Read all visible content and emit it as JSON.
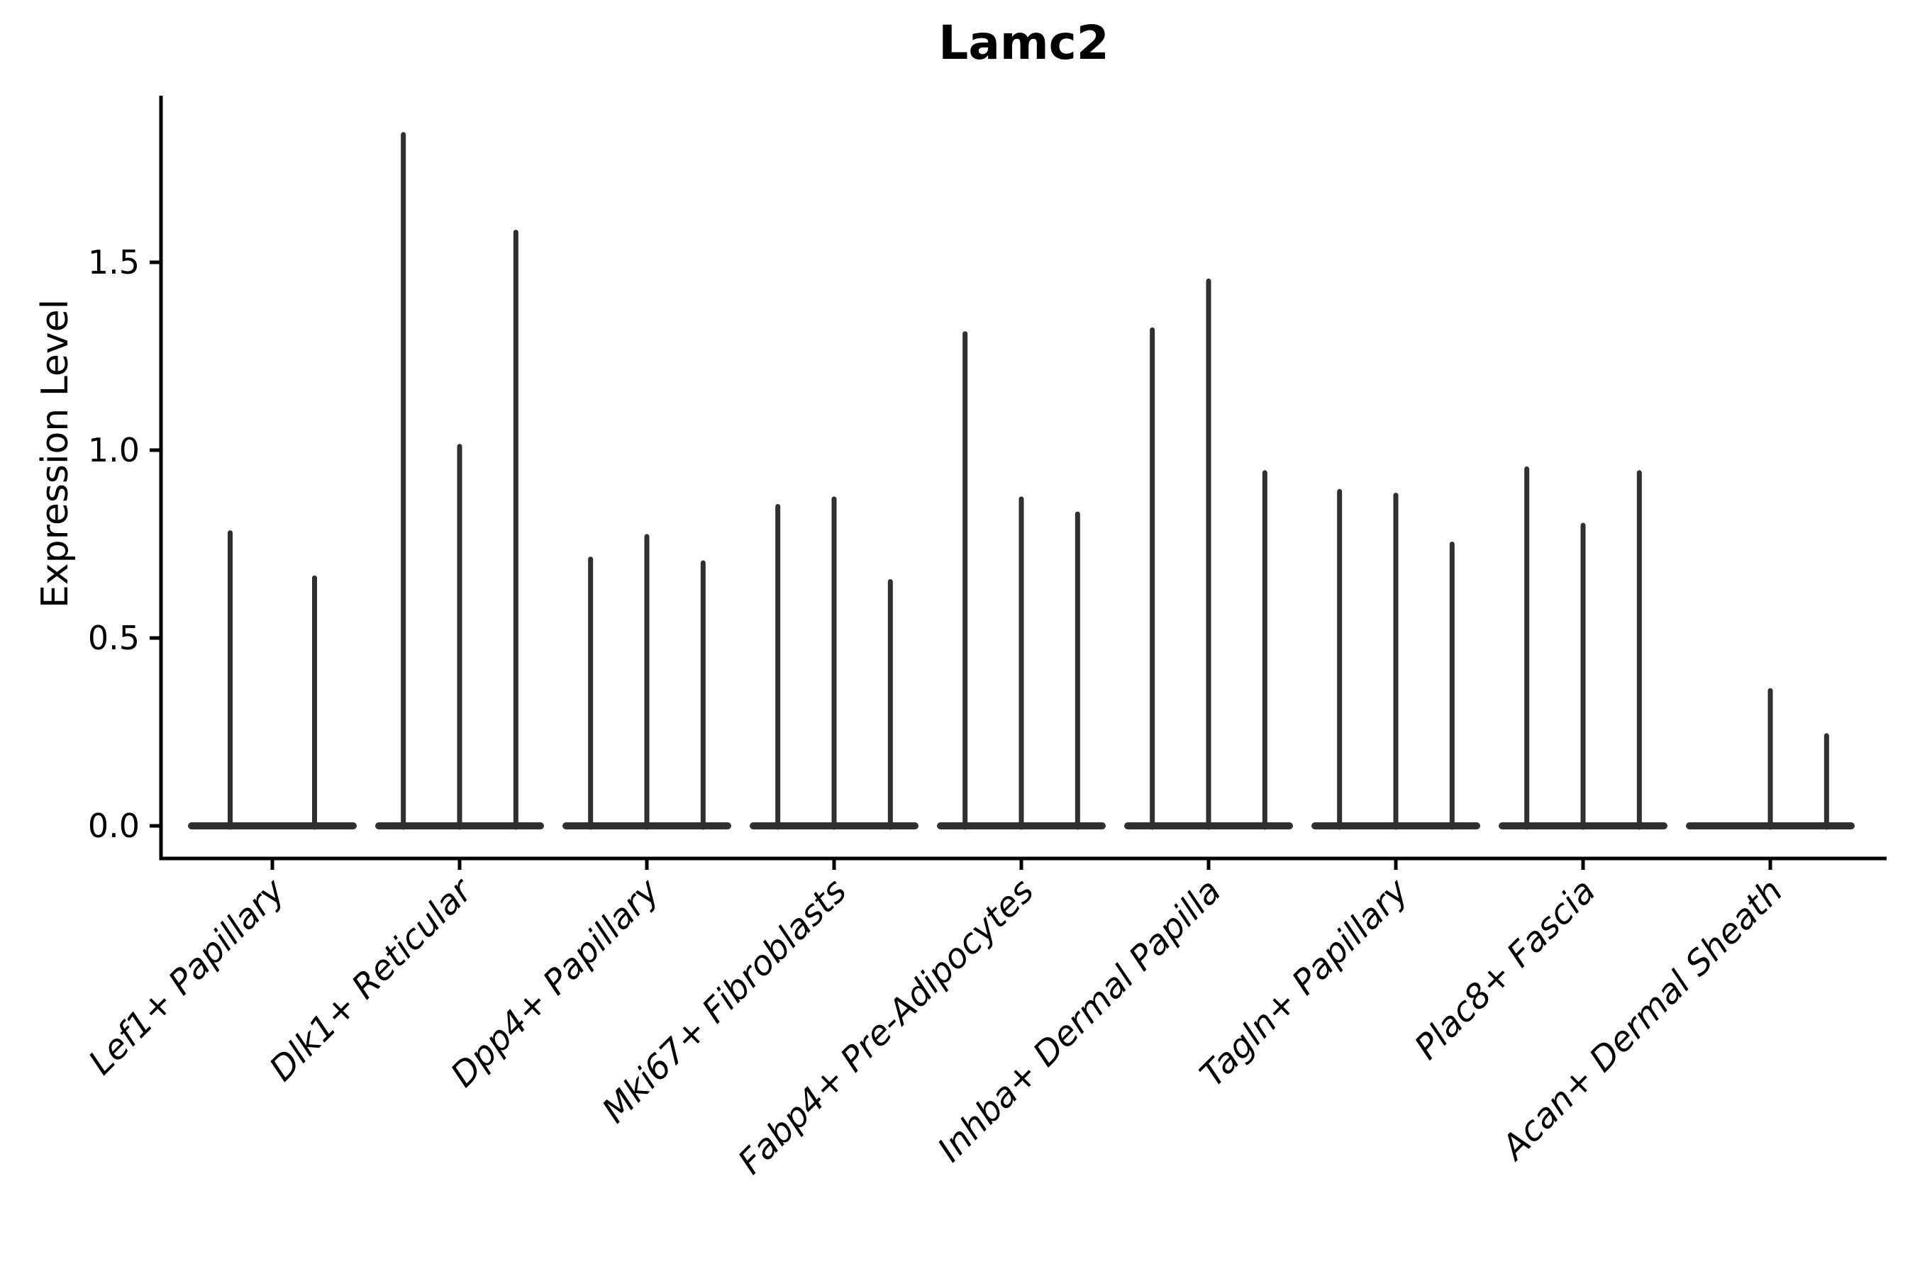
{
  "chart_data": {
    "type": "violin",
    "title": "Lamc2",
    "ylabel": "Expression Level",
    "categories": [
      "Lef1+ Papillary",
      "Dlk1+ Reticular",
      "Dpp4+ Papillary",
      "Mki67+ Fibroblasts",
      "Fabp4+ Pre-Adipocytes",
      "Inhba+ Dermal Papilla",
      "Tagln+ Papillary",
      "Plac8+ Fascia",
      "Acan+ Dermal Sheath"
    ],
    "violin_max": [
      [
        0.78,
        0.66
      ],
      [
        1.84,
        1.01,
        1.58
      ],
      [
        0.71,
        0.77,
        0.7
      ],
      [
        0.85,
        0.87,
        0.65
      ],
      [
        1.31,
        0.87,
        0.83
      ],
      [
        1.32,
        1.45,
        0.94
      ],
      [
        0.89,
        0.88,
        0.75
      ],
      [
        0.95,
        0.8,
        0.94
      ],
      [
        0.0,
        0.36,
        0.24
      ]
    ],
    "violin_note": "Violins are collapsed at expression 0 (flat body) with a thin tail up to the listed maximum; group 1 shows 2 violins, all other groups 3; the first violin of the last group is entirely at 0 (no tail).",
    "yticks": [
      0.0,
      0.5,
      1.0,
      1.5
    ],
    "ytick_labels": [
      "0.0",
      "0.5",
      "1.0",
      "1.5"
    ],
    "ylim": [
      -0.09,
      1.94
    ],
    "grid": false,
    "legend": null,
    "colors": {
      "violin": "#303030",
      "axis": "#000000",
      "text": "#000000",
      "background": "#ffffff"
    }
  }
}
